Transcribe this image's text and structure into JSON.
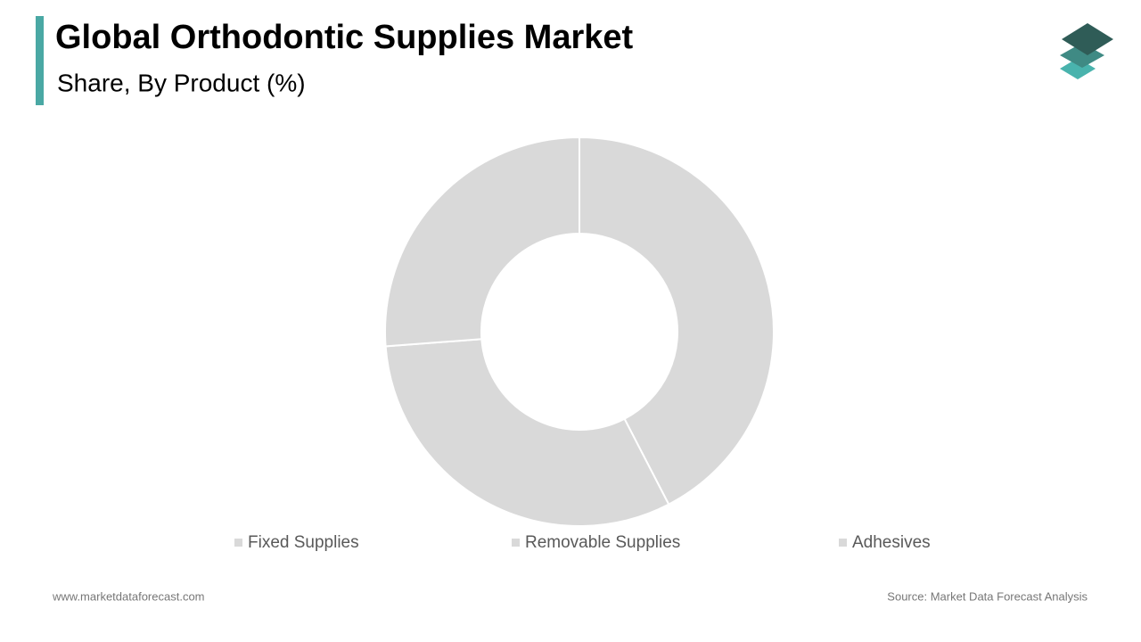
{
  "chart_data": {
    "type": "donut",
    "title": "Global Orthodontic Supplies Market",
    "subtitle": "Share, By Product (%)",
    "categories": [
      "Fixed Supplies",
      "Removable Supplies",
      "Adhesives"
    ],
    "values": [
      42.4,
      31.4,
      26.2
    ],
    "colors": [
      "#d9d9d9",
      "#d9d9d9",
      "#d9d9d9"
    ],
    "legend": "bottom"
  },
  "footer": {
    "website": "www.marketdataforecast.com",
    "source": "Source: Market Data Forecast Analysis"
  }
}
